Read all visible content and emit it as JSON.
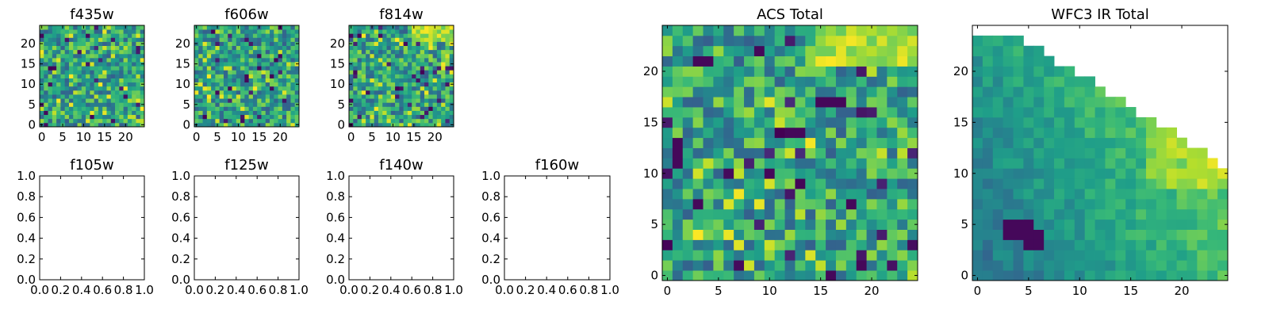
{
  "colors": {
    "colormap": "viridis",
    "frame": "#000000",
    "background": "#ffffff"
  },
  "chart_data": [
    {
      "type": "heatmap",
      "title": "f435w",
      "xticks": [
        "0",
        "5",
        "10",
        "15",
        "20"
      ],
      "yticks": [
        "0",
        "5",
        "10",
        "15",
        "20"
      ],
      "xlim": [
        -0.5,
        24.5
      ],
      "ylim": [
        -0.5,
        24.5
      ],
      "grid_size": [
        25,
        25
      ],
      "pattern": "noise"
    },
    {
      "type": "heatmap",
      "title": "f606w",
      "xticks": [
        "0",
        "5",
        "10",
        "15",
        "20"
      ],
      "yticks": [
        "0",
        "5",
        "10",
        "15",
        "20"
      ],
      "xlim": [
        -0.5,
        24.5
      ],
      "ylim": [
        -0.5,
        24.5
      ],
      "grid_size": [
        25,
        25
      ],
      "pattern": "noise"
    },
    {
      "type": "heatmap",
      "title": "f814w",
      "xticks": [
        "0",
        "5",
        "10",
        "15",
        "20"
      ],
      "yticks": [
        "0",
        "5",
        "10",
        "15",
        "20"
      ],
      "xlim": [
        -0.5,
        24.5
      ],
      "ylim": [
        -0.5,
        24.5
      ],
      "grid_size": [
        25,
        25
      ],
      "pattern": "noise",
      "bright_corner": "top-right"
    },
    {
      "type": "empty",
      "title": "f105w",
      "xticks": [
        "0.0",
        "0.2",
        "0.4",
        "0.6",
        "0.8",
        "1.0"
      ],
      "yticks": [
        "0.0",
        "0.2",
        "0.4",
        "0.6",
        "0.8",
        "1.0"
      ],
      "xlim": [
        0,
        1
      ],
      "ylim": [
        0,
        1
      ]
    },
    {
      "type": "empty",
      "title": "f125w",
      "xticks": [
        "0.0",
        "0.2",
        "0.4",
        "0.6",
        "0.8",
        "1.0"
      ],
      "yticks": [
        "0.0",
        "0.2",
        "0.4",
        "0.6",
        "0.8",
        "1.0"
      ],
      "xlim": [
        0,
        1
      ],
      "ylim": [
        0,
        1
      ]
    },
    {
      "type": "empty",
      "title": "f140w",
      "xticks": [
        "0.0",
        "0.2",
        "0.4",
        "0.6",
        "0.8",
        "1.0"
      ],
      "yticks": [
        "0.0",
        "0.2",
        "0.4",
        "0.6",
        "0.8",
        "1.0"
      ],
      "xlim": [
        0,
        1
      ],
      "ylim": [
        0,
        1
      ]
    },
    {
      "type": "empty",
      "title": "f160w",
      "xticks": [
        "0.0",
        "0.2",
        "0.4",
        "0.6",
        "0.8",
        "1.0"
      ],
      "yticks": [
        "0.0",
        "0.2",
        "0.4",
        "0.6",
        "0.8",
        "1.0"
      ],
      "xlim": [
        0,
        1
      ],
      "ylim": [
        0,
        1
      ]
    },
    {
      "type": "heatmap",
      "title": "ACS Total",
      "xticks": [
        "0",
        "5",
        "10",
        "15",
        "20"
      ],
      "yticks": [
        "0",
        "5",
        "10",
        "15",
        "20"
      ],
      "xlim": [
        -0.5,
        24.5
      ],
      "ylim": [
        -0.5,
        24.5
      ],
      "grid_size": [
        25,
        25
      ],
      "pattern": "noise",
      "bright_corner": "top-right",
      "dark_pixels": [
        [
          1,
          11
        ],
        [
          1,
          12
        ],
        [
          1,
          13
        ],
        [
          9,
          22
        ],
        [
          12,
          14
        ],
        [
          13,
          14
        ],
        [
          15,
          17
        ],
        [
          16,
          17
        ],
        [
          17,
          17
        ],
        [
          10,
          10
        ],
        [
          3,
          7
        ],
        [
          18,
          7
        ],
        [
          16,
          0
        ],
        [
          19,
          1
        ],
        [
          3,
          21
        ],
        [
          4,
          21
        ]
      ]
    },
    {
      "type": "heatmap",
      "title": "WFC3 IR Total",
      "xticks": [
        "0",
        "5",
        "10",
        "15",
        "20"
      ],
      "yticks": [
        "0",
        "5",
        "10",
        "15",
        "20"
      ],
      "xlim": [
        -0.5,
        24.5
      ],
      "ylim": [
        -0.5,
        24.5
      ],
      "grid_size": [
        25,
        25
      ],
      "pattern": "gradient",
      "masked_region": "upper-right",
      "dark_pixels": [
        [
          3,
          4
        ],
        [
          3,
          5
        ],
        [
          4,
          4
        ],
        [
          4,
          5
        ],
        [
          5,
          3
        ],
        [
          5,
          4
        ],
        [
          6,
          3
        ],
        [
          6,
          4
        ],
        [
          5,
          5
        ]
      ]
    }
  ]
}
